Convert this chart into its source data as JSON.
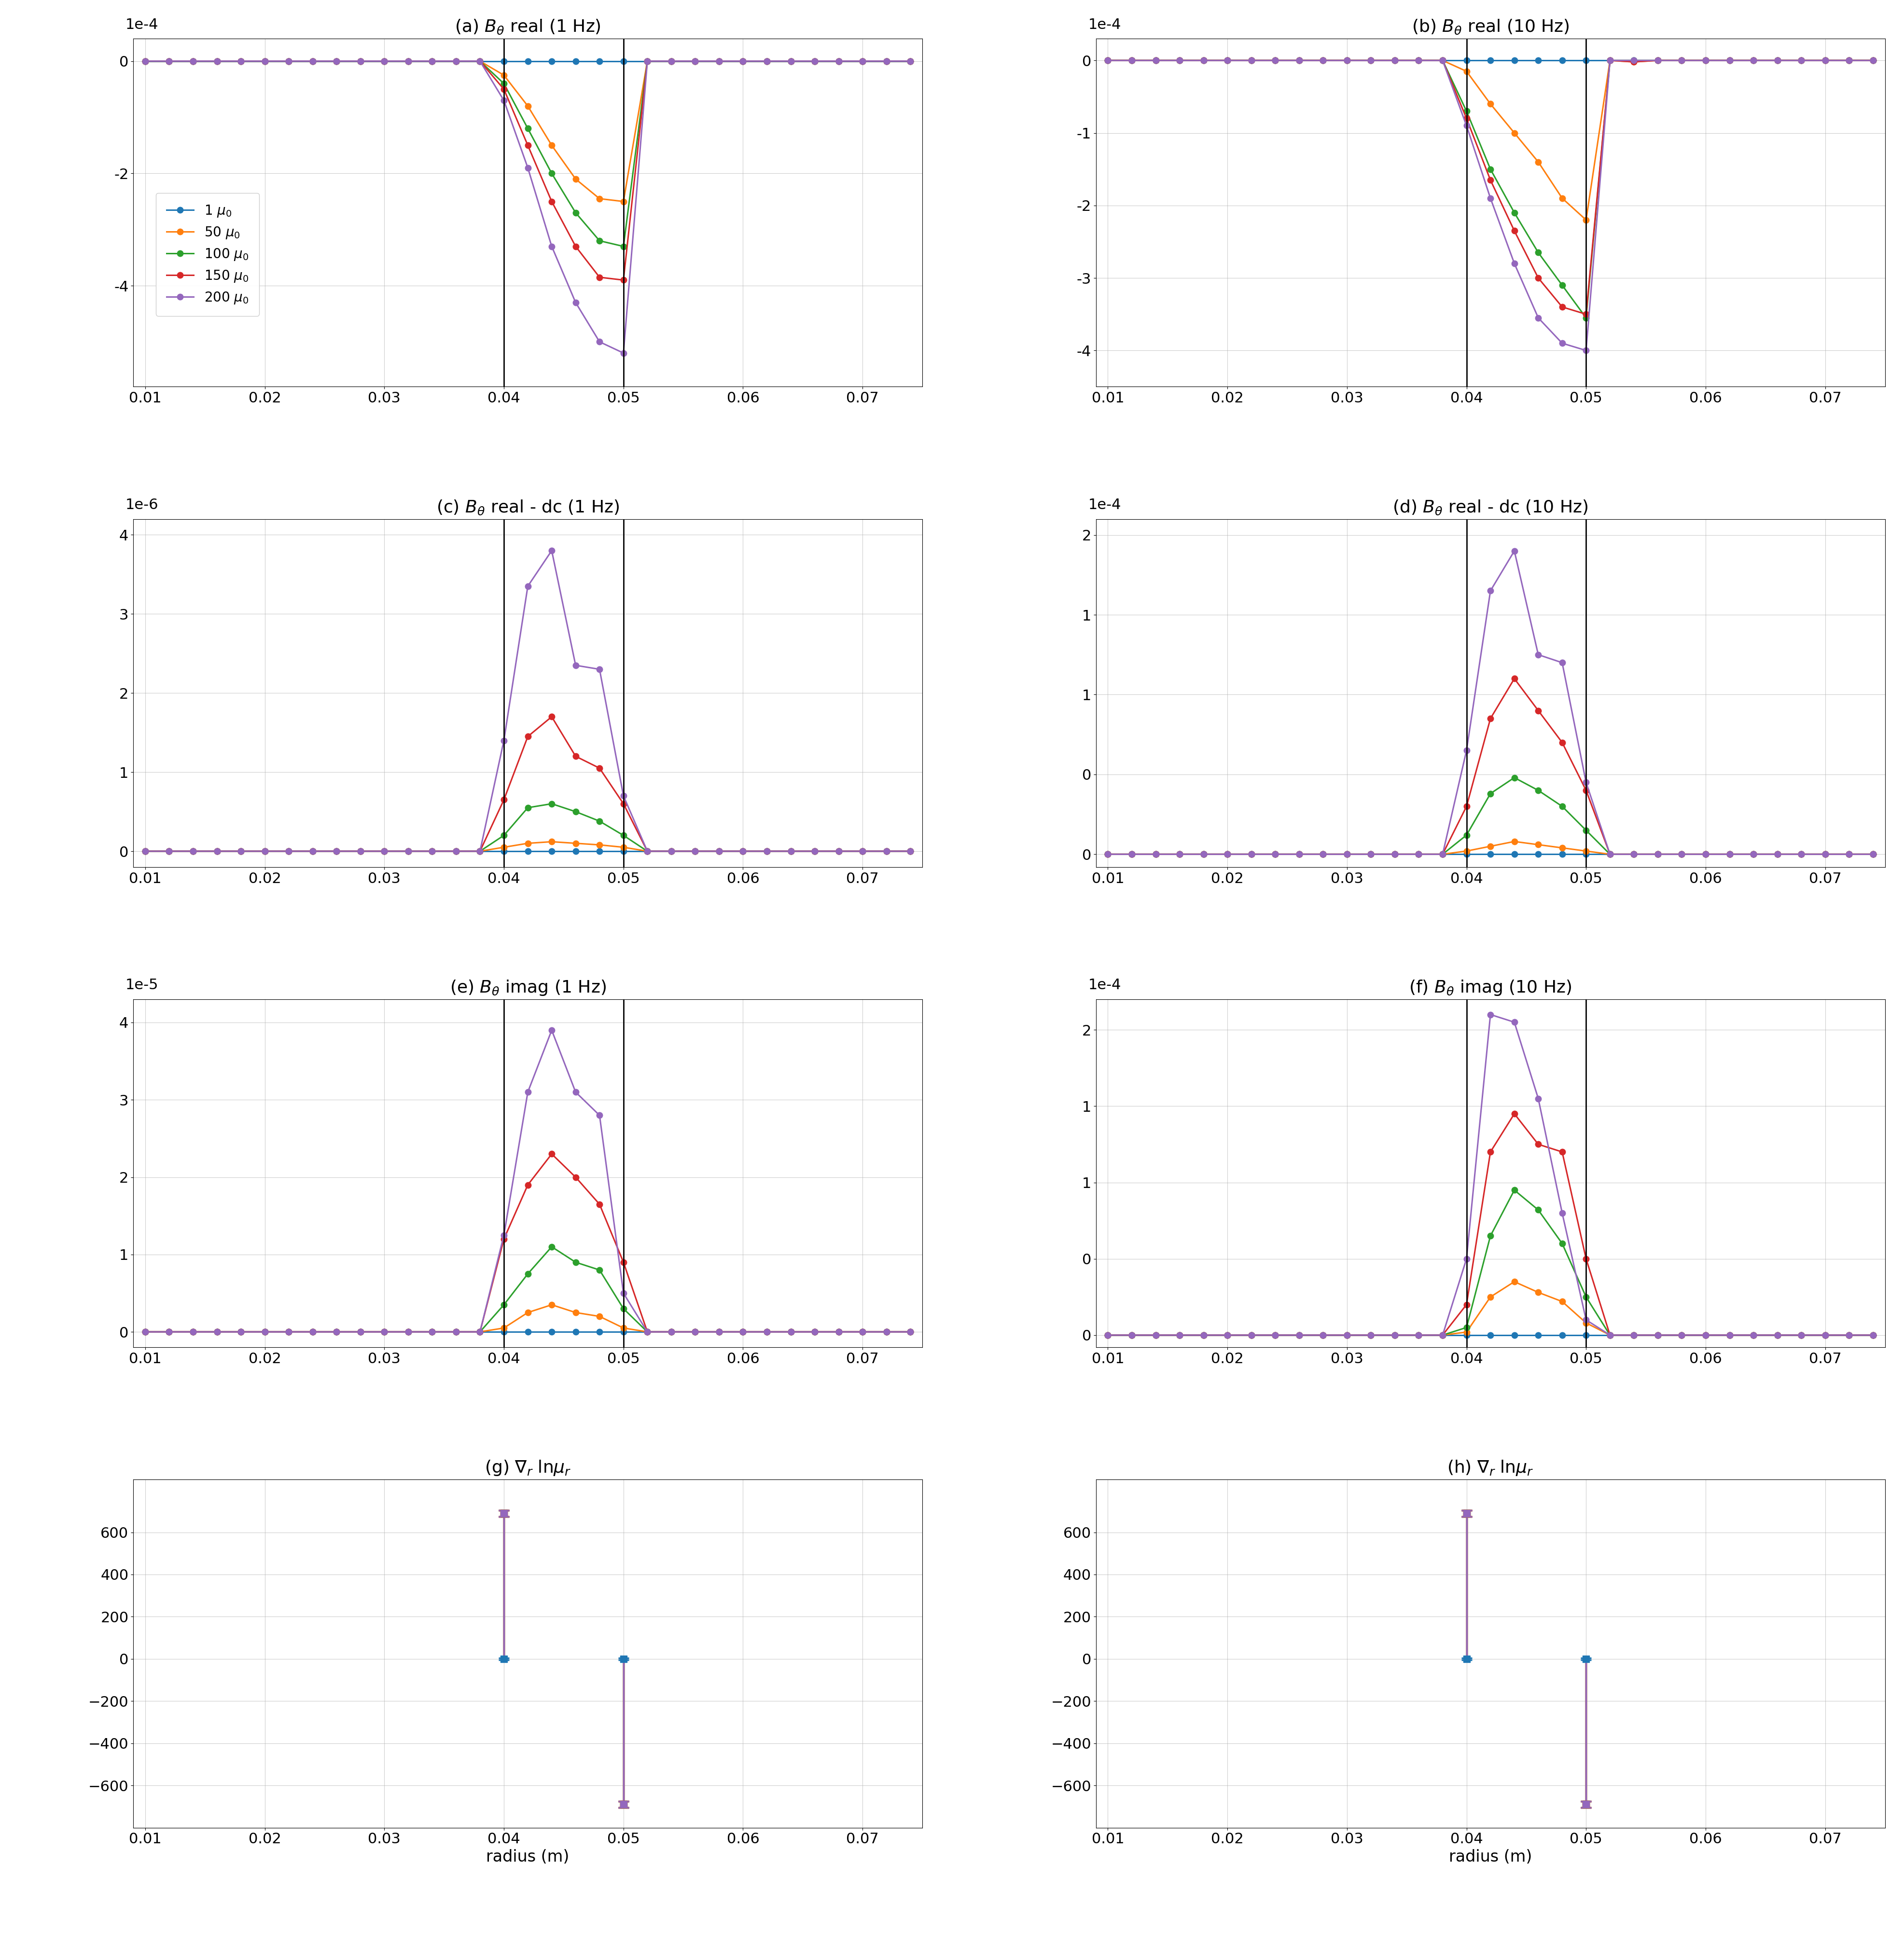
{
  "title_a": "(a) $B_\\theta$ real (1 Hz)",
  "title_b": "(b) $B_\\theta$ real (10 Hz)",
  "title_c": "(c) $B_\\theta$ real - dc (1 Hz)",
  "title_d": "(d) $B_\\theta$ real - dc (10 Hz)",
  "title_e": "(e) $B_\\theta$ imag (1 Hz)",
  "title_f": "(f) $B_\\theta$ imag (10 Hz)",
  "title_g": "(g) $\\nabla_r$ ln$\\mu_r$",
  "title_h": "(h) $\\nabla_r$ ln$\\mu_r$",
  "xlabel": "radius (m)",
  "legend_labels": [
    "1 $\\mu_0$",
    "50 $\\mu_0$",
    "100 $\\mu_0$",
    "150 $\\mu_0$",
    "200 $\\mu_0$"
  ],
  "colors": [
    "#1f77b4",
    "#ff7f0e",
    "#2ca02c",
    "#d62728",
    "#9467bd"
  ],
  "radii": [
    0.01,
    0.012,
    0.014,
    0.016,
    0.018,
    0.02,
    0.022,
    0.024,
    0.026,
    0.028,
    0.03,
    0.032,
    0.034,
    0.036,
    0.038,
    0.04,
    0.042,
    0.044,
    0.046,
    0.048,
    0.05,
    0.052,
    0.054,
    0.056,
    0.058,
    0.06,
    0.062,
    0.064,
    0.066,
    0.068,
    0.07,
    0.072,
    0.074
  ],
  "vline1": 0.04,
  "vline2": 0.05,
  "panel_a": {
    "data": [
      [
        0,
        0,
        0,
        0,
        0,
        0,
        0,
        0,
        0,
        0,
        0,
        0,
        0,
        0,
        0,
        0,
        0,
        0,
        0,
        0,
        0,
        0,
        0,
        0,
        0,
        0,
        0,
        0,
        0,
        0,
        0,
        0,
        0
      ],
      [
        0,
        0,
        0,
        0,
        0,
        0,
        0,
        0,
        0,
        0,
        0,
        0,
        0,
        0,
        0,
        -2.5e-05,
        -8e-05,
        -0.00015,
        -0.00021,
        -0.000245,
        -0.00025,
        0,
        0,
        0,
        0,
        0,
        0,
        0,
        0,
        0,
        0,
        0,
        0
      ],
      [
        0,
        0,
        0,
        0,
        0,
        0,
        0,
        0,
        0,
        0,
        0,
        0,
        0,
        0,
        0,
        -4e-05,
        -0.00012,
        -0.0002,
        -0.00027,
        -0.00032,
        -0.00033,
        0,
        0,
        0,
        0,
        0,
        0,
        0,
        0,
        0,
        0,
        0,
        0
      ],
      [
        0,
        0,
        0,
        0,
        0,
        0,
        0,
        0,
        0,
        0,
        0,
        0,
        0,
        0,
        0,
        -5e-05,
        -0.00015,
        -0.00025,
        -0.00033,
        -0.000385,
        -0.00039,
        0,
        0,
        0,
        0,
        0,
        0,
        0,
        0,
        0,
        0,
        0,
        0
      ],
      [
        0,
        0,
        0,
        0,
        0,
        0,
        0,
        0,
        0,
        0,
        0,
        0,
        0,
        0,
        0,
        -7e-05,
        -0.00019,
        -0.00033,
        -0.00043,
        -0.0005,
        -0.00052,
        0,
        0,
        0,
        0,
        0,
        0,
        0,
        0,
        0,
        0,
        0,
        0
      ]
    ],
    "ylim": [
      -0.00058,
      4e-05
    ],
    "yticks": [
      0.0,
      -0.0002,
      -0.0004
    ],
    "scale_label": "1e-4",
    "scale": 0.0001
  },
  "panel_b": {
    "data": [
      [
        0,
        0,
        0,
        0,
        0,
        0,
        0,
        0,
        0,
        0,
        0,
        0,
        0,
        0,
        0,
        0,
        0,
        0,
        0,
        0,
        0,
        0,
        0,
        0,
        0,
        0,
        0,
        0,
        0,
        0,
        0,
        0,
        0
      ],
      [
        0,
        0,
        0,
        0,
        0,
        0,
        0,
        0,
        0,
        0,
        0,
        0,
        0,
        0,
        0,
        -1.5e-05,
        -6e-05,
        -0.0001,
        -0.00014,
        -0.00019,
        -0.00022,
        0,
        -2e-06,
        0,
        0,
        0,
        0,
        0,
        0,
        0,
        0,
        0,
        0
      ],
      [
        0,
        0,
        0,
        0,
        0,
        0,
        0,
        0,
        0,
        0,
        0,
        0,
        0,
        0,
        0,
        -7e-05,
        -0.00015,
        -0.00021,
        -0.000265,
        -0.00031,
        -0.000355,
        0,
        0,
        0,
        0,
        0,
        0,
        0,
        0,
        0,
        0,
        0,
        0
      ],
      [
        0,
        0,
        0,
        0,
        0,
        0,
        0,
        0,
        0,
        0,
        0,
        0,
        0,
        0,
        0,
        -8e-05,
        -0.000165,
        -0.000235,
        -0.0003,
        -0.00034,
        -0.00035,
        0,
        -2e-06,
        0,
        0,
        0,
        0,
        0,
        0,
        0,
        0,
        0,
        0
      ],
      [
        0,
        0,
        0,
        0,
        0,
        0,
        0,
        0,
        0,
        0,
        0,
        0,
        0,
        0,
        0,
        -9e-05,
        -0.00019,
        -0.00028,
        -0.000355,
        -0.00039,
        -0.0004,
        0,
        0,
        0,
        0,
        0,
        0,
        0,
        0,
        0,
        0,
        0,
        0
      ]
    ],
    "ylim": [
      -0.00045,
      3e-05
    ],
    "yticks": [
      0.0,
      -0.0001,
      -0.0002,
      -0.0003,
      -0.0004
    ],
    "scale_label": "1e-4",
    "scale": 0.0001
  },
  "panel_c": {
    "data": [
      [
        0,
        0,
        0,
        0,
        0,
        0,
        0,
        0,
        0,
        0,
        0,
        0,
        0,
        0,
        0,
        0,
        0,
        0,
        0,
        0,
        0,
        0,
        0,
        0,
        0,
        0,
        0,
        0,
        0,
        0,
        0,
        0,
        0
      ],
      [
        0,
        0,
        0,
        0,
        0,
        0,
        0,
        0,
        0,
        0,
        0,
        0,
        0,
        0,
        0,
        5e-08,
        1e-07,
        1.2e-07,
        1e-07,
        8e-08,
        5e-08,
        0,
        0,
        0,
        0,
        0,
        0,
        0,
        0,
        0,
        0,
        0,
        0
      ],
      [
        0,
        0,
        0,
        0,
        0,
        0,
        0,
        0,
        0,
        0,
        0,
        0,
        0,
        0,
        0,
        2e-07,
        5.5e-07,
        6e-07,
        5e-07,
        3.8e-07,
        2e-07,
        0,
        0,
        0,
        0,
        0,
        0,
        0,
        0,
        0,
        0,
        0,
        0
      ],
      [
        0,
        0,
        0,
        0,
        0,
        0,
        0,
        0,
        0,
        0,
        0,
        0,
        0,
        0,
        0,
        6.5e-07,
        1.45e-06,
        1.7e-06,
        1.2e-06,
        1.05e-06,
        6e-07,
        0,
        0,
        0,
        0,
        0,
        0,
        0,
        0,
        0,
        0,
        0,
        0
      ],
      [
        0,
        0,
        0,
        0,
        0,
        0,
        0,
        0,
        0,
        0,
        0,
        0,
        0,
        0,
        0,
        1.4e-06,
        3.35e-06,
        3.8e-06,
        2.35e-06,
        2.3e-06,
        7e-07,
        0,
        0,
        0,
        0,
        0,
        0,
        0,
        0,
        0,
        0,
        0,
        0
      ]
    ],
    "ylim": [
      -2e-07,
      4.2e-06
    ],
    "yticks": [
      0.0,
      1e-06,
      2e-06,
      3e-06,
      4e-06
    ],
    "scale_label": "1e-6",
    "scale": 1e-06
  },
  "panel_d": {
    "data": [
      [
        0,
        0,
        0,
        0,
        0,
        0,
        0,
        0,
        0,
        0,
        0,
        0,
        0,
        0,
        0,
        0,
        0,
        0,
        0,
        0,
        0,
        0,
        0,
        0,
        0,
        0,
        0,
        0,
        0,
        0,
        0,
        0,
        0
      ],
      [
        0,
        0,
        0,
        0,
        0,
        0,
        0,
        0,
        0,
        0,
        0,
        0,
        0,
        0,
        0,
        2e-06,
        5e-06,
        8e-06,
        6e-06,
        4e-06,
        2e-06,
        0,
        0,
        0,
        0,
        0,
        0,
        0,
        0,
        0,
        0,
        0,
        0
      ],
      [
        0,
        0,
        0,
        0,
        0,
        0,
        0,
        0,
        0,
        0,
        0,
        0,
        0,
        0,
        0,
        1.2e-05,
        3.8e-05,
        4.8e-05,
        4e-05,
        3e-05,
        1.5e-05,
        0,
        0,
        0,
        0,
        0,
        0,
        0,
        0,
        0,
        0,
        0,
        0
      ],
      [
        0,
        0,
        0,
        0,
        0,
        0,
        0,
        0,
        0,
        0,
        0,
        0,
        0,
        0,
        0,
        3e-05,
        8.5e-05,
        0.00011,
        9e-05,
        7e-05,
        4e-05,
        0,
        0,
        0,
        0,
        0,
        0,
        0,
        0,
        0,
        0,
        0,
        0
      ],
      [
        0,
        0,
        0,
        0,
        0,
        0,
        0,
        0,
        0,
        0,
        0,
        0,
        0,
        0,
        0,
        6.5e-05,
        0.000165,
        0.00019,
        0.000125,
        0.00012,
        4.5e-05,
        0,
        0,
        0,
        0,
        0,
        0,
        0,
        0,
        0,
        0,
        0,
        0
      ]
    ],
    "ylim": [
      -8e-06,
      0.00021
    ],
    "yticks": [
      0.0,
      5e-05,
      0.0001,
      0.00015,
      0.0002
    ],
    "scale_label": "1e-4",
    "scale": 0.0001
  },
  "panel_e": {
    "data": [
      [
        0,
        0,
        0,
        0,
        0,
        0,
        0,
        0,
        0,
        0,
        0,
        0,
        0,
        0,
        0,
        0,
        0,
        0,
        0,
        0,
        0,
        0,
        0,
        0,
        0,
        0,
        0,
        0,
        0,
        0,
        0,
        0,
        0
      ],
      [
        0,
        0,
        0,
        0,
        0,
        0,
        0,
        0,
        0,
        0,
        0,
        0,
        0,
        0,
        0,
        5e-07,
        2.5e-06,
        3.5e-06,
        2.5e-06,
        2e-06,
        5e-07,
        0,
        0,
        0,
        0,
        0,
        0,
        0,
        0,
        0,
        0,
        0,
        0
      ],
      [
        0,
        0,
        0,
        0,
        0,
        0,
        0,
        0,
        0,
        0,
        0,
        0,
        0,
        0,
        0,
        3.5e-06,
        7.5e-06,
        1.1e-05,
        9e-06,
        8e-06,
        3e-06,
        0,
        0,
        0,
        0,
        0,
        0,
        0,
        0,
        0,
        0,
        0,
        0
      ],
      [
        0,
        0,
        0,
        0,
        0,
        0,
        0,
        0,
        0,
        0,
        0,
        0,
        0,
        0,
        0,
        1.2e-05,
        1.9e-05,
        2.3e-05,
        2e-05,
        1.65e-05,
        9e-06,
        0,
        0,
        0,
        0,
        0,
        0,
        0,
        0,
        0,
        0,
        0,
        0
      ],
      [
        0,
        0,
        0,
        0,
        0,
        0,
        0,
        0,
        0,
        0,
        0,
        0,
        0,
        0,
        0,
        1.25e-05,
        3.1e-05,
        3.9e-05,
        3.1e-05,
        2.8e-05,
        5e-06,
        0,
        0,
        0,
        0,
        0,
        0,
        0,
        0,
        0,
        0,
        0,
        0
      ]
    ],
    "ylim": [
      -2e-06,
      4.3e-05
    ],
    "yticks": [
      0.0,
      1e-05,
      2e-05,
      3e-05,
      4e-05
    ],
    "scale_label": "1e-5",
    "scale": 1e-05
  },
  "panel_f": {
    "data": [
      [
        0,
        0,
        0,
        0,
        0,
        0,
        0,
        0,
        0,
        0,
        0,
        0,
        0,
        0,
        0,
        0,
        0,
        0,
        0,
        0,
        0,
        0,
        0,
        0,
        0,
        0,
        0,
        0,
        0,
        0,
        0,
        0,
        0
      ],
      [
        0,
        0,
        0,
        0,
        0,
        0,
        0,
        0,
        0,
        0,
        0,
        0,
        0,
        0,
        0,
        2e-06,
        2.5e-05,
        3.5e-05,
        2.8e-05,
        2.2e-05,
        8e-06,
        0,
        0,
        0,
        0,
        0,
        0,
        0,
        0,
        0,
        0,
        0,
        0
      ],
      [
        0,
        0,
        0,
        0,
        0,
        0,
        0,
        0,
        0,
        0,
        0,
        0,
        0,
        0,
        0,
        5e-06,
        6.5e-05,
        9.5e-05,
        8.2e-05,
        6e-05,
        2.5e-05,
        0,
        0,
        0,
        0,
        0,
        0,
        0,
        0,
        0,
        0,
        0,
        0
      ],
      [
        0,
        0,
        0,
        0,
        0,
        0,
        0,
        0,
        0,
        0,
        0,
        0,
        0,
        0,
        0,
        2e-05,
        0.00012,
        0.000145,
        0.000125,
        0.00012,
        5e-05,
        0,
        0,
        0,
        0,
        0,
        0,
        0,
        0,
        0,
        0,
        0,
        0
      ],
      [
        0,
        0,
        0,
        0,
        0,
        0,
        0,
        0,
        0,
        0,
        0,
        0,
        0,
        0,
        0,
        5e-05,
        0.00021,
        0.000205,
        0.000155,
        8e-05,
        1e-05,
        0,
        0,
        0,
        0,
        0,
        0,
        0,
        0,
        0,
        0,
        0,
        0
      ]
    ],
    "ylim": [
      -8e-06,
      0.00022
    ],
    "yticks": [
      0.0,
      5e-05,
      0.0001,
      0.00015,
      0.0002
    ],
    "scale_label": "1e-4",
    "scale": 0.0001
  },
  "grad_r04": [
    0.0,
    690.0,
    690.0,
    690.0,
    690.0
  ],
  "grad_r05": [
    0.0,
    -690.0,
    -690.0,
    -690.0,
    -690.0
  ],
  "grad_r04_err": [
    5.0,
    15.0,
    15.0,
    15.0,
    15.0
  ],
  "grad_r05_err": [
    5.0,
    15.0,
    15.0,
    15.0,
    15.0
  ],
  "grad_ylim": [
    -800,
    850
  ],
  "grad_yticks": [
    -600,
    -400,
    -200,
    0,
    200,
    400,
    600
  ]
}
